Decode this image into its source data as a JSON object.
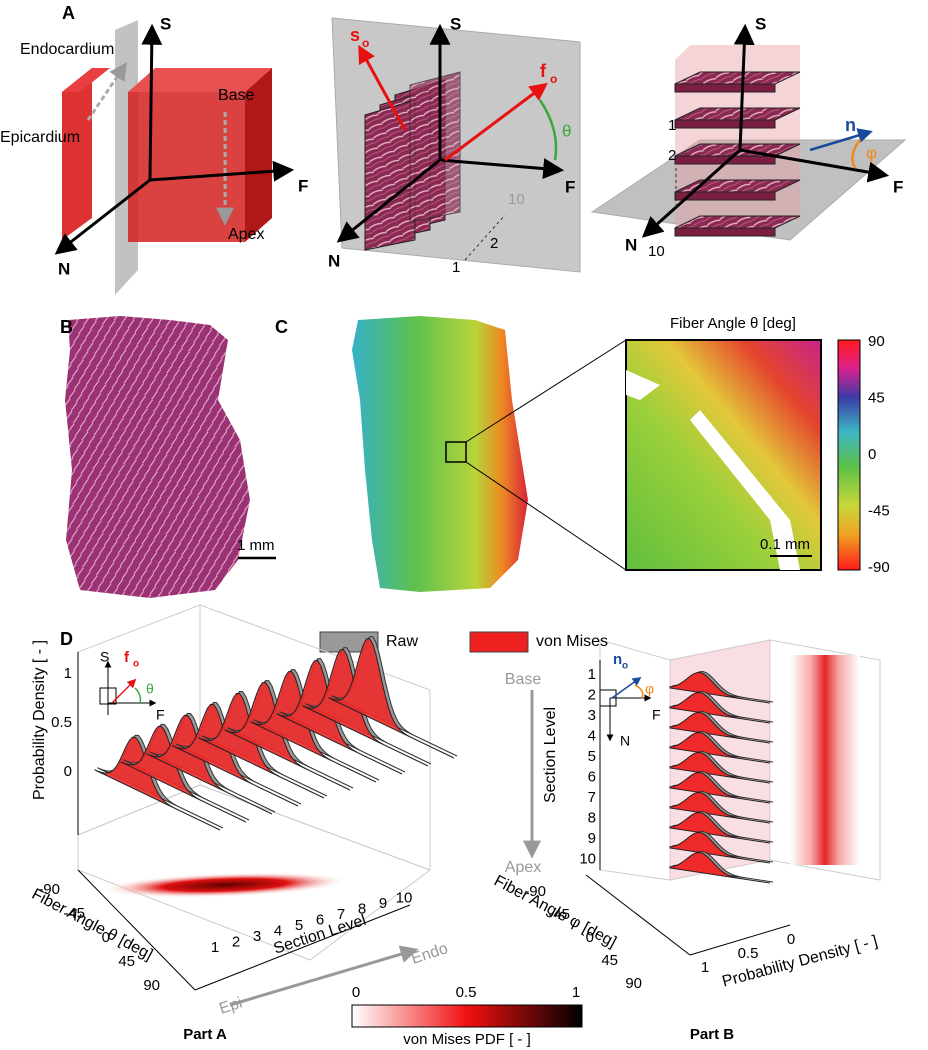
{
  "panel_a": {
    "label": "A",
    "diagram_1": {
      "s_axis": "S",
      "f_axis": "F",
      "n_axis": "N",
      "endocardium": "Endocardium",
      "epicardium": "Epicardium",
      "base": "Base",
      "apex": "Apex"
    },
    "diagram_2": {
      "s_axis": "S",
      "f_axis": "F",
      "n_axis": "N",
      "s_vector": {
        "main": "s",
        "sub": "o"
      },
      "f_vector": {
        "main": "f",
        "sub": "o"
      },
      "angle": "θ",
      "sections": [
        "1",
        "2",
        "10"
      ]
    },
    "diagram_3": {
      "s_axis": "S",
      "f_axis": "F",
      "n_axis": "N",
      "n_vector": {
        "main": "n",
        "sub": "o"
      },
      "angle": "φ",
      "sections": [
        "1",
        "2",
        "10"
      ]
    }
  },
  "panel_b": {
    "label": "B",
    "scale_bar": "1 mm"
  },
  "panel_c": {
    "label": "C",
    "colorbar_title": "Fiber Angle θ  [deg]",
    "colorbar_ticks": [
      90,
      45,
      0,
      -45,
      -90
    ],
    "scale_bar": "0.1 mm"
  },
  "panel_d": {
    "label": "D",
    "legend": [
      "Raw",
      "von Mises"
    ],
    "part_a": {
      "title": "Part A",
      "y_label": "Probability Density [ - ]",
      "y_ticks": [
        1,
        0.5,
        0
      ],
      "inset": {
        "s_axis": "S",
        "f_axis": "F",
        "f_vector": {
          "main": "f",
          "sub": "o"
        },
        "angle": "θ"
      },
      "angle_label": "Fiber Angle θ [deg]",
      "angle_ticks": [
        -90,
        -45,
        0,
        45,
        90
      ],
      "section_label": "Section Level",
      "section_ticks": [
        1,
        2,
        3,
        4,
        5,
        6,
        7,
        8,
        9,
        10
      ],
      "epi": "Epi",
      "endo": "Endo"
    },
    "part_b": {
      "title": "Part B",
      "base": "Base",
      "apex": "Apex",
      "section_label": "Section Level",
      "section_ticks": [
        1,
        2,
        3,
        4,
        5,
        6,
        7,
        8,
        9,
        10
      ],
      "inset": {
        "n_vector": {
          "main": "n",
          "sub": "o"
        },
        "angle": "φ",
        "f_axis": "F",
        "n_axis": "N"
      },
      "angle_label": "Fiber Angle φ [deg]",
      "angle_ticks": [
        -90,
        -45,
        0,
        45,
        90
      ],
      "density_label": "Probability Density [ - ]",
      "density_ticks": [
        1,
        0.5,
        0
      ]
    },
    "colorbar": {
      "ticks": [
        0,
        0.5,
        1
      ],
      "label": "von Mises PDF [ - ]"
    }
  }
}
